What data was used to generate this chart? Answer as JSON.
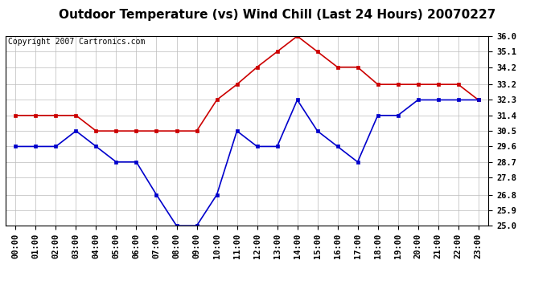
{
  "title": "Outdoor Temperature (vs) Wind Chill (Last 24 Hours) 20070227",
  "copyright": "Copyright 2007 Cartronics.com",
  "hours": [
    "00:00",
    "01:00",
    "02:00",
    "03:00",
    "04:00",
    "05:00",
    "06:00",
    "07:00",
    "08:00",
    "09:00",
    "10:00",
    "11:00",
    "12:00",
    "13:00",
    "14:00",
    "15:00",
    "16:00",
    "17:00",
    "18:00",
    "19:00",
    "20:00",
    "21:00",
    "22:00",
    "23:00"
  ],
  "temp": [
    31.4,
    31.4,
    31.4,
    31.4,
    30.5,
    30.5,
    30.5,
    30.5,
    30.5,
    30.5,
    32.3,
    33.2,
    34.2,
    35.1,
    36.0,
    35.1,
    34.2,
    34.2,
    33.2,
    33.2,
    33.2,
    33.2,
    33.2,
    32.3
  ],
  "windchill": [
    29.6,
    29.6,
    29.6,
    30.5,
    29.6,
    28.7,
    28.7,
    26.8,
    25.0,
    25.0,
    26.8,
    30.5,
    29.6,
    29.6,
    32.3,
    30.5,
    29.6,
    28.7,
    31.4,
    31.4,
    32.3,
    32.3,
    32.3,
    32.3
  ],
  "temp_color": "#cc0000",
  "windchill_color": "#0000cc",
  "ylim": [
    25.0,
    36.0
  ],
  "yticks": [
    25.0,
    25.9,
    26.8,
    27.8,
    28.7,
    29.6,
    30.5,
    31.4,
    32.3,
    33.2,
    34.2,
    35.1,
    36.0
  ],
  "bg_color": "#ffffff",
  "grid_color": "#bbbbbb",
  "title_fontsize": 11,
  "copyright_fontsize": 7,
  "tick_fontsize": 7.5,
  "marker": "s",
  "markersize": 3,
  "linewidth": 1.2
}
